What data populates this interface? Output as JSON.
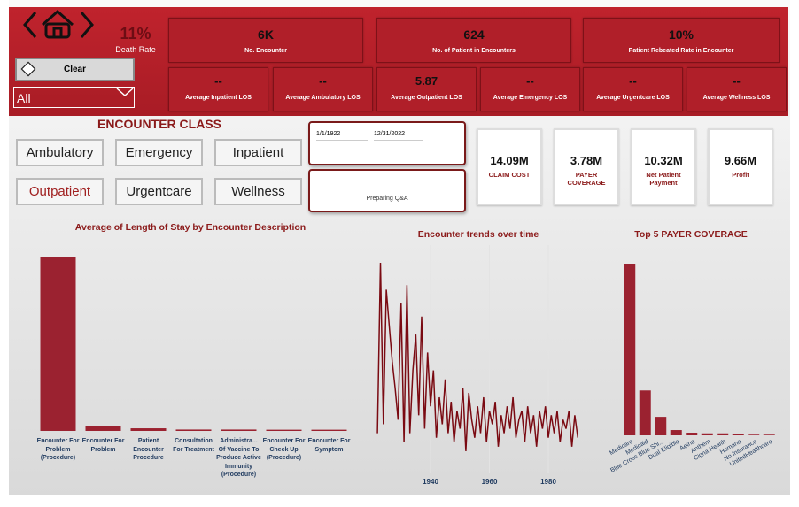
{
  "header": {
    "death_rate": {
      "value": "11%",
      "label": "Death Rate"
    },
    "clear_button": "Clear",
    "dropdown": "All"
  },
  "kpi_cards": [
    {
      "value": "6K",
      "label": "No. Encounter"
    },
    {
      "value": "624",
      "label": "No. of Patient in Encounters"
    },
    {
      "value": "10%",
      "label": "Patient Rebeated Rate in Encounter"
    }
  ],
  "los_cards": [
    {
      "value": "--",
      "label": "Average Inpatient LOS"
    },
    {
      "value": "--",
      "label": "Average Ambulatory LOS"
    },
    {
      "value": "5.87",
      "label": "Average Outpatient LOS"
    },
    {
      "value": "--",
      "label": "Average Emergency LOS"
    },
    {
      "value": "--",
      "label": "Average Urgentcare LOS"
    },
    {
      "value": "--",
      "label": "Average Wellness LOS"
    }
  ],
  "encounter_class": {
    "title": "ENCOUNTER CLASS",
    "buttons": [
      "Ambulatory",
      "Emergency",
      "Inpatient",
      "Outpatient",
      "Urgentcare",
      "Wellness"
    ],
    "selected": 3
  },
  "date_slicer": {
    "start": "1/1/1922",
    "end": "12/31/2022"
  },
  "qa": "Preparing Q&A",
  "finance_cards": [
    {
      "value": "14.09M",
      "label": "CLAIM COST"
    },
    {
      "value": "3.78M",
      "label": "PAYER COVERAGE"
    },
    {
      "value": "10.32M",
      "label": "Net Patient Payment"
    },
    {
      "value": "9.66M",
      "label": "Profit"
    }
  ],
  "chart_data": [
    {
      "type": "bar",
      "title": "Average of Length of Stay by Encounter Description",
      "color": "#9b2230",
      "categories": [
        "Encounter For Problem (Procedure)",
        "Encounter For Problem",
        "Patient Encounter Procedure",
        "Consultation For Treatment",
        "Administra... Of Vaccine To Produce Active Immunity (Procedure)",
        "Encounter For Check Up (Procedure)",
        "Encounter For Symptom"
      ],
      "values": [
        100,
        2.6,
        1.5,
        0.8,
        0.8,
        0.7,
        0.7
      ]
    },
    {
      "type": "line",
      "title": "Encounter trends over time",
      "color": "#7a0a12",
      "grid": true,
      "x": [
        1922,
        1923,
        1924,
        1925,
        1926,
        1927,
        1928,
        1929,
        1930,
        1931,
        1932,
        1933,
        1934,
        1935,
        1936,
        1937,
        1938,
        1939,
        1940,
        1941,
        1942,
        1943,
        1944,
        1945,
        1946,
        1947,
        1948,
        1949,
        1950,
        1951,
        1952,
        1953,
        1954,
        1955,
        1956,
        1957,
        1958,
        1959,
        1960,
        1961,
        1962,
        1963,
        1964,
        1965,
        1966,
        1967,
        1968,
        1969,
        1970,
        1971,
        1972,
        1973,
        1974,
        1975,
        1976,
        1977,
        1978,
        1979,
        1980,
        1981,
        1982,
        1983,
        1984,
        1985,
        1986,
        1987,
        1988,
        1989,
        1990
      ],
      "values": [
        30,
        220,
        40,
        190,
        150,
        110,
        80,
        45,
        175,
        20,
        195,
        30,
        100,
        140,
        50,
        160,
        35,
        120,
        60,
        100,
        25,
        70,
        40,
        90,
        30,
        65,
        20,
        55,
        35,
        80,
        10,
        75,
        45,
        25,
        60,
        30,
        70,
        20,
        55,
        40,
        65,
        15,
        50,
        30,
        60,
        35,
        70,
        25,
        45,
        55,
        20,
        60,
        30,
        50,
        15,
        55,
        35,
        60,
        25,
        50,
        30,
        55,
        20,
        45,
        35,
        55,
        15,
        50,
        25
      ],
      "xlim": [
        1920,
        1992
      ],
      "xticks": [
        1940,
        1960,
        1980
      ]
    },
    {
      "type": "bar",
      "title": "Top 5 PAYER COVERAGE",
      "color": "#9b2230",
      "label_rotation": -30,
      "categories": [
        "Medicare",
        "Medicaid",
        "Blue Cross Blue Shi...",
        "Dual Eligible",
        "Aetna",
        "Anthem",
        "Cigna Health",
        "Humana",
        "No Insurance",
        "UnitedHealthcare"
      ],
      "values": [
        2.6,
        0.68,
        0.28,
        0.08,
        0.04,
        0.03,
        0.03,
        0.02,
        0.01,
        0.01
      ]
    }
  ]
}
